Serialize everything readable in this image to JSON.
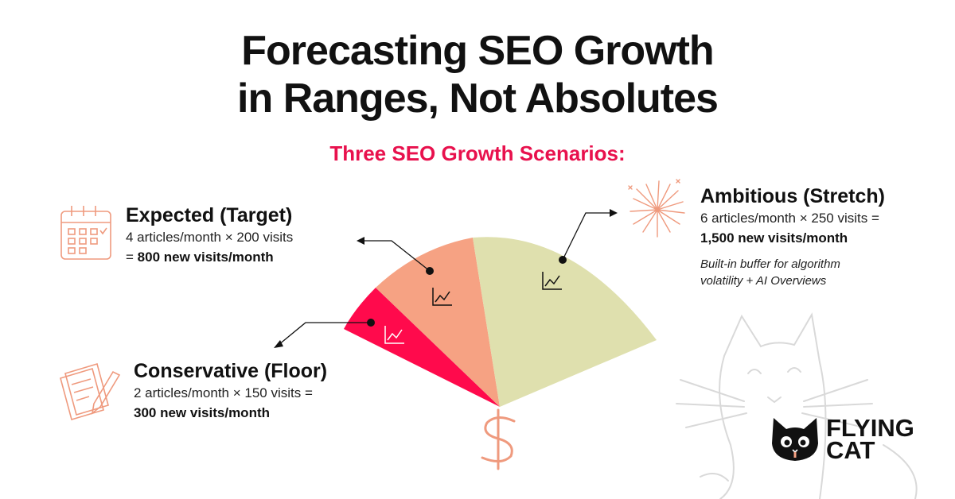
{
  "title": {
    "line1": "Forecasting SEO Growth",
    "line2": "in Ranges, Not Absolutes"
  },
  "subtitle": "Three SEO Growth Scenarios:",
  "colors": {
    "accent": "#e8114d",
    "conservative": "#ff0a4c",
    "expected": "#f6a283",
    "ambitious": "#dfe0ae",
    "icon_peach": "#ef9a7e"
  },
  "scenarios": {
    "expected": {
      "title": "Expected (Target)",
      "line1": "4 articles/month × 200 visits",
      "prefix": "= ",
      "result": "800 new visits/month",
      "icon": "calendar-icon"
    },
    "conservative": {
      "title": "Conservative (Floor)",
      "line1": "2 articles/month × 150 visits =",
      "result": "300 new visits/month",
      "icon": "notepad-pencil-icon"
    },
    "ambitious": {
      "title": "Ambitious (Stretch)",
      "line1": "6 articles/month × 250 visits =",
      "result": "1,500 new visits/month",
      "note1": "Built-in buffer for algorithm",
      "note2": "volatility + AI Overviews",
      "icon": "fireworks-icon"
    }
  },
  "fan_icons": [
    "growth-chart-icon",
    "dollar-icon"
  ],
  "logo": {
    "line1": "FLYING",
    "line2": "CAT",
    "icon": "cat-face-icon"
  }
}
